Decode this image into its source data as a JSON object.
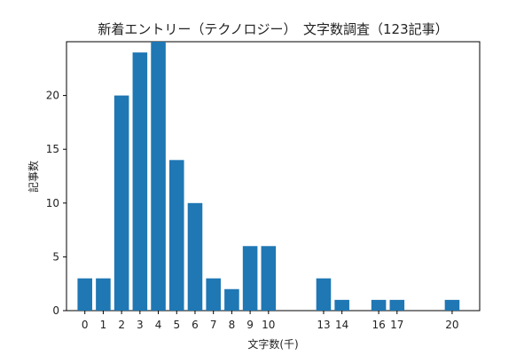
{
  "chart_data": {
    "type": "bar",
    "title": "新着エントリー（テクノロジー）　文字数調査（123記事）",
    "xlabel": "文字数(千)",
    "ylabel": "記事数",
    "x": [
      0,
      1,
      2,
      3,
      4,
      5,
      6,
      7,
      8,
      9,
      10,
      13,
      14,
      16,
      17,
      20
    ],
    "values": [
      3,
      3,
      20,
      24,
      25,
      14,
      10,
      3,
      2,
      6,
      6,
      3,
      1,
      1,
      1,
      1
    ],
    "xticks": [
      0,
      1,
      2,
      3,
      4,
      5,
      6,
      7,
      8,
      9,
      10,
      13,
      14,
      16,
      17,
      20
    ],
    "yticks": [
      0,
      5,
      10,
      15,
      20
    ],
    "xlim": [
      -1.0,
      21.5
    ],
    "ylim": [
      0,
      25
    ],
    "bar_color": "#1f77b4",
    "grid": false,
    "legend": "none"
  }
}
